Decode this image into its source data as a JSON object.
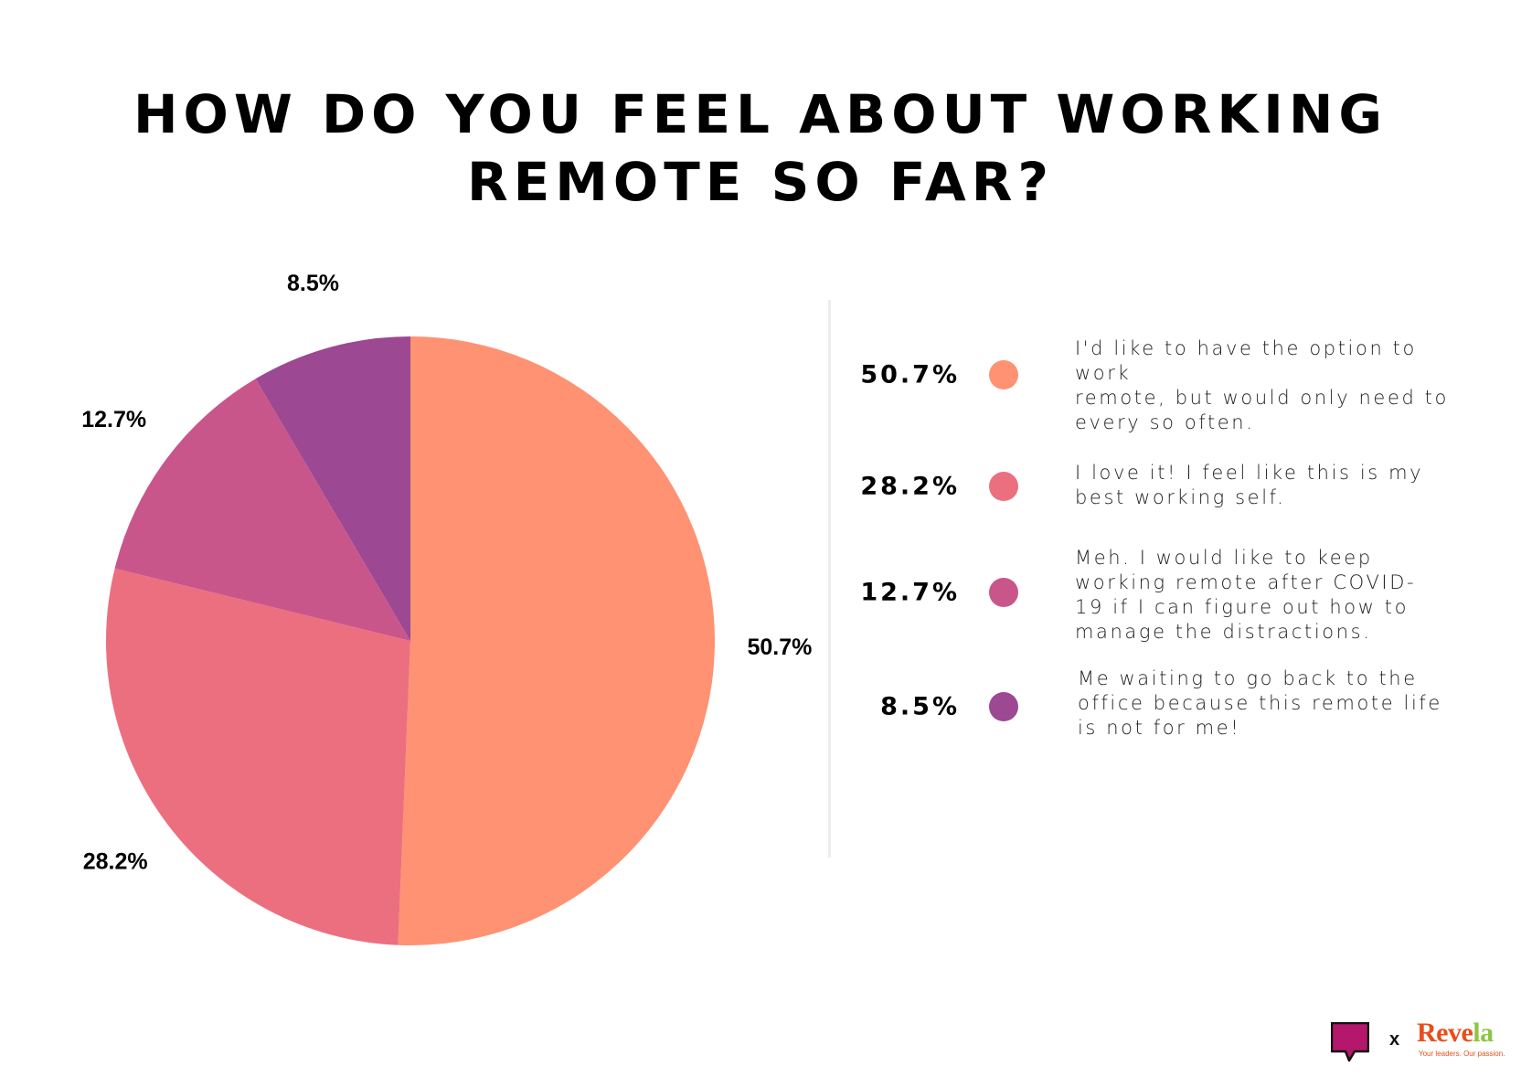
{
  "title_lines": [
    "HOW DO YOU FEEL ABOUT WORKING",
    "REMOTE SO FAR?"
  ],
  "chart_data": {
    "type": "pie",
    "title": "HOW DO YOU FEEL ABOUT WORKING REMOTE SO FAR?",
    "slices": [
      {
        "label": "50.7%",
        "value": 50.7,
        "color": "#fe9272",
        "description": "I'd like to have the option to work remote, but would only need to every so often."
      },
      {
        "label": "28.2%",
        "value": 28.2,
        "color": "#ec6f80",
        "description": "I love it! I feel like this is my best working self."
      },
      {
        "label": "12.7%",
        "value": 12.7,
        "color": "#c9568a",
        "description": "Meh. I would like to keep working remote after COVID-19 if I can figure out how to manage the distractions."
      },
      {
        "label": "8.5%",
        "value": 8.5,
        "color": "#9c4892",
        "description": "Me waiting to go back to the office because this remote life is not for me!"
      }
    ],
    "legend_position": "right"
  },
  "legend": [
    {
      "pct": "50.7%",
      "color": "#fe9272",
      "lines": [
        "I'd like to have the option to work",
        "remote, but would only need to",
        "every so often."
      ]
    },
    {
      "pct": "28.2%",
      "color": "#ec6f80",
      "lines": [
        "I love it! I feel like this is my",
        "best working self."
      ]
    },
    {
      "pct": "12.7%",
      "color": "#c9568a",
      "lines": [
        "Meh. I would like to keep",
        "working remote after COVID-",
        "19 if I can figure out how to",
        "manage the distractions."
      ]
    },
    {
      "pct": "8.5%",
      "color": "#9c4892",
      "lines": [
        "Me waiting to go back to the",
        "office because this remote life",
        "is not for me!"
      ]
    }
  ],
  "branding": {
    "separator": "x",
    "revela_part1": "Reve",
    "revela_part2": "la",
    "tagline": "Your leaders. Our passion.",
    "bubble_color": "#b5176c"
  }
}
